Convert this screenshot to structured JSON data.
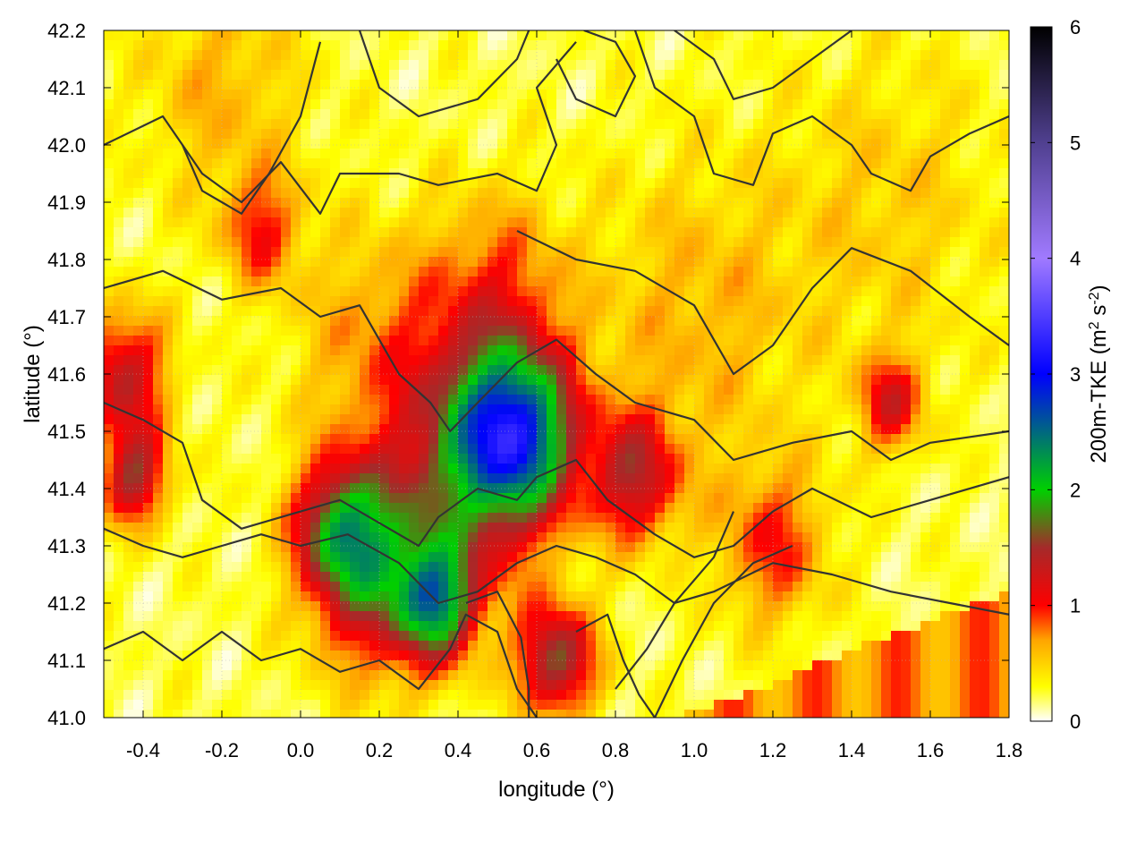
{
  "chart_data": {
    "type": "heatmap",
    "title": "",
    "xlabel": "longitude (°)",
    "ylabel": "latitude (°)",
    "xlim": [
      -0.5,
      1.8
    ],
    "ylim": [
      41.0,
      42.2
    ],
    "x_ticks": [
      -0.4,
      -0.2,
      0.0,
      0.2,
      0.4,
      0.6,
      0.8,
      1.0,
      1.2,
      1.4,
      1.6,
      1.8
    ],
    "x_tick_labels": [
      "-0.4",
      "-0.2",
      "0.0",
      "0.2",
      "0.4",
      "0.6",
      "0.8",
      "1.0",
      "1.2",
      "1.4",
      "1.6",
      "1.8"
    ],
    "y_ticks": [
      41.0,
      41.1,
      41.2,
      41.3,
      41.4,
      41.5,
      41.6,
      41.7,
      41.8,
      41.9,
      42.0,
      42.1,
      42.2
    ],
    "y_tick_labels": [
      "41.0",
      "41.1",
      "41.2",
      "41.3",
      "41.4",
      "41.5",
      "41.6",
      "41.7",
      "41.8",
      "41.9",
      "42.0",
      "42.1",
      "42.2"
    ],
    "grid": true,
    "colorbar": {
      "label_parts": [
        "200m-TKE (m",
        "2",
        " s",
        "-2",
        ")"
      ],
      "range": [
        0,
        6
      ],
      "ticks": [
        0,
        1,
        2,
        3,
        4,
        5,
        6
      ],
      "tick_labels": [
        "0",
        "1",
        "2",
        "3",
        "4",
        "5",
        "6"
      ],
      "colors": [
        {
          "value": 0.0,
          "color": "#ffffff"
        },
        {
          "value": 0.3,
          "color": "#ffff00"
        },
        {
          "value": 0.7,
          "color": "#ffa500"
        },
        {
          "value": 1.0,
          "color": "#ff0000"
        },
        {
          "value": 1.5,
          "color": "#a52a2a"
        },
        {
          "value": 2.0,
          "color": "#00d000"
        },
        {
          "value": 3.0,
          "color": "#0000ff"
        },
        {
          "value": 4.0,
          "color": "#a07aff"
        },
        {
          "value": 5.0,
          "color": "#504090"
        },
        {
          "value": 6.0,
          "color": "#000000"
        }
      ]
    },
    "field_hotspots": [
      {
        "lon": 0.55,
        "lat": 41.5,
        "value": 2.0,
        "sigma": 0.1
      },
      {
        "lon": 0.45,
        "lat": 41.45,
        "value": 1.3,
        "sigma": 0.14
      },
      {
        "lon": 0.2,
        "lat": 41.25,
        "value": 1.3,
        "sigma": 0.12
      },
      {
        "lon": 0.35,
        "lat": 41.2,
        "value": 1.6,
        "sigma": 0.07
      },
      {
        "lon": 0.1,
        "lat": 41.33,
        "value": 1.3,
        "sigma": 0.08
      },
      {
        "lon": -0.45,
        "lat": 41.6,
        "value": 1.1,
        "sigma": 0.08
      },
      {
        "lon": -0.42,
        "lat": 41.42,
        "value": 1.2,
        "sigma": 0.06
      },
      {
        "lon": 0.65,
        "lat": 41.1,
        "value": 1.4,
        "sigma": 0.07
      },
      {
        "lon": 0.85,
        "lat": 41.42,
        "value": 1.1,
        "sigma": 0.08
      },
      {
        "lon": 1.5,
        "lat": 41.55,
        "value": 0.9,
        "sigma": 0.06
      },
      {
        "lon": -0.1,
        "lat": 41.85,
        "value": 0.7,
        "sigma": 0.07
      },
      {
        "lon": 0.5,
        "lat": 41.75,
        "value": 0.6,
        "sigma": 0.12
      },
      {
        "lon": 0.2,
        "lat": 41.65,
        "value": 0.5,
        "sigma": 0.15
      },
      {
        "lon": 1.2,
        "lat": 41.3,
        "value": 0.7,
        "sigma": 0.1
      },
      {
        "lon": 1.0,
        "lat": 41.7,
        "value": 0.4,
        "sigma": 0.2
      },
      {
        "lon": -0.2,
        "lat": 42.1,
        "value": 0.4,
        "sigma": 0.15
      },
      {
        "lon": 1.5,
        "lat": 41.9,
        "value": 0.3,
        "sigma": 0.2
      }
    ],
    "sea_band": {
      "edge": [
        [
          0.95,
          41.0
        ],
        [
          1.2,
          41.06
        ],
        [
          1.45,
          41.13
        ],
        [
          1.8,
          41.22
        ]
      ],
      "value": 0.75
    },
    "contours": [
      [
        [
          -0.5,
          42.0
        ],
        [
          -0.35,
          42.05
        ],
        [
          -0.25,
          41.95
        ],
        [
          -0.15,
          41.9
        ],
        [
          -0.05,
          41.97
        ],
        [
          0.05,
          41.88
        ],
        [
          0.1,
          41.95
        ],
        [
          0.25,
          41.95
        ],
        [
          0.35,
          41.93
        ],
        [
          0.5,
          41.95
        ],
        [
          0.6,
          41.92
        ],
        [
          0.65,
          42.0
        ],
        [
          0.6,
          42.1
        ],
        [
          0.7,
          42.18
        ]
      ],
      [
        [
          -0.5,
          41.75
        ],
        [
          -0.35,
          41.78
        ],
        [
          -0.2,
          41.73
        ],
        [
          -0.05,
          41.75
        ],
        [
          0.05,
          41.7
        ],
        [
          0.15,
          41.72
        ],
        [
          0.25,
          41.6
        ],
        [
          0.33,
          41.55
        ],
        [
          0.38,
          41.5
        ],
        [
          0.45,
          41.55
        ],
        [
          0.55,
          41.62
        ],
        [
          0.65,
          41.66
        ],
        [
          0.75,
          41.6
        ],
        [
          0.85,
          41.55
        ],
        [
          1.0,
          41.52
        ],
        [
          1.1,
          41.45
        ],
        [
          1.25,
          41.48
        ],
        [
          1.4,
          41.5
        ],
        [
          1.5,
          41.45
        ],
        [
          1.6,
          41.48
        ],
        [
          1.8,
          41.5
        ]
      ],
      [
        [
          -0.5,
          41.55
        ],
        [
          -0.4,
          41.52
        ],
        [
          -0.3,
          41.48
        ],
        [
          -0.25,
          41.38
        ],
        [
          -0.15,
          41.33
        ],
        [
          0.0,
          41.36
        ],
        [
          0.1,
          41.38
        ],
        [
          0.2,
          41.34
        ],
        [
          0.3,
          41.3
        ],
        [
          0.35,
          41.35
        ],
        [
          0.45,
          41.4
        ],
        [
          0.55,
          41.38
        ],
        [
          0.6,
          41.42
        ],
        [
          0.7,
          41.45
        ],
        [
          0.78,
          41.38
        ],
        [
          0.9,
          41.32
        ],
        [
          1.0,
          41.28
        ],
        [
          1.1,
          41.3
        ],
        [
          1.2,
          41.36
        ],
        [
          1.3,
          41.4
        ],
        [
          1.45,
          41.35
        ],
        [
          1.6,
          41.38
        ],
        [
          1.8,
          41.42
        ]
      ],
      [
        [
          -0.5,
          41.33
        ],
        [
          -0.4,
          41.3
        ],
        [
          -0.3,
          41.28
        ],
        [
          -0.2,
          41.3
        ],
        [
          -0.1,
          41.32
        ],
        [
          0.0,
          41.3
        ],
        [
          0.12,
          41.32
        ],
        [
          0.25,
          41.27
        ],
        [
          0.35,
          41.2
        ],
        [
          0.45,
          41.22
        ],
        [
          0.55,
          41.27
        ],
        [
          0.65,
          41.3
        ],
        [
          0.75,
          41.28
        ],
        [
          0.85,
          41.25
        ],
        [
          0.95,
          41.2
        ],
        [
          1.05,
          41.22
        ],
        [
          1.2,
          41.27
        ],
        [
          1.35,
          41.25
        ],
        [
          1.5,
          41.22
        ],
        [
          1.65,
          41.2
        ],
        [
          1.8,
          41.18
        ]
      ],
      [
        [
          -0.5,
          41.12
        ],
        [
          -0.4,
          41.15
        ],
        [
          -0.3,
          41.1
        ],
        [
          -0.2,
          41.15
        ],
        [
          -0.1,
          41.1
        ],
        [
          0.0,
          41.12
        ],
        [
          0.1,
          41.08
        ],
        [
          0.2,
          41.1
        ],
        [
          0.3,
          41.05
        ],
        [
          0.38,
          41.12
        ],
        [
          0.42,
          41.18
        ],
        [
          0.5,
          41.15
        ],
        [
          0.55,
          41.05
        ],
        [
          0.6,
          41.0
        ]
      ],
      [
        [
          0.42,
          41.2
        ],
        [
          0.5,
          41.22
        ],
        [
          0.56,
          41.14
        ],
        [
          0.58,
          41.05
        ],
        [
          0.58,
          41.0
        ]
      ],
      [
        [
          0.7,
          41.15
        ],
        [
          0.78,
          41.18
        ],
        [
          0.82,
          41.1
        ],
        [
          0.86,
          41.04
        ],
        [
          0.9,
          41.0
        ]
      ],
      [
        [
          0.8,
          41.05
        ],
        [
          0.88,
          41.12
        ],
        [
          0.95,
          41.2
        ],
        [
          1.05,
          41.28
        ],
        [
          1.1,
          41.36
        ]
      ],
      [
        [
          0.9,
          41.0
        ],
        [
          0.97,
          41.1
        ],
        [
          1.05,
          41.2
        ],
        [
          1.15,
          41.27
        ],
        [
          1.25,
          41.3
        ]
      ],
      [
        [
          0.85,
          42.2
        ],
        [
          0.9,
          42.1
        ],
        [
          1.0,
          42.05
        ],
        [
          1.05,
          41.95
        ],
        [
          1.15,
          41.93
        ],
        [
          1.2,
          42.02
        ],
        [
          1.3,
          42.05
        ],
        [
          1.4,
          42.0
        ],
        [
          1.45,
          41.95
        ],
        [
          1.55,
          41.92
        ],
        [
          1.6,
          41.98
        ],
        [
          1.7,
          42.02
        ],
        [
          1.8,
          42.05
        ]
      ],
      [
        [
          0.95,
          42.2
        ],
        [
          1.05,
          42.15
        ],
        [
          1.1,
          42.08
        ],
        [
          1.2,
          42.1
        ],
        [
          1.3,
          42.15
        ],
        [
          1.4,
          42.2
        ]
      ],
      [
        [
          0.65,
          42.15
        ],
        [
          0.7,
          42.08
        ],
        [
          0.8,
          42.05
        ],
        [
          0.85,
          42.12
        ],
        [
          0.8,
          42.18
        ],
        [
          0.72,
          42.2
        ]
      ],
      [
        [
          -0.3,
          42.0
        ],
        [
          -0.25,
          41.92
        ],
        [
          -0.15,
          41.88
        ],
        [
          -0.08,
          41.95
        ],
        [
          0.0,
          42.05
        ],
        [
          0.05,
          42.18
        ]
      ],
      [
        [
          0.55,
          41.85
        ],
        [
          0.7,
          41.8
        ],
        [
          0.85,
          41.78
        ],
        [
          1.0,
          41.72
        ],
        [
          1.1,
          41.6
        ],
        [
          1.2,
          41.65
        ],
        [
          1.3,
          41.75
        ],
        [
          1.4,
          41.82
        ],
        [
          1.55,
          41.78
        ],
        [
          1.7,
          41.7
        ],
        [
          1.8,
          41.65
        ]
      ],
      [
        [
          0.15,
          42.2
        ],
        [
          0.2,
          42.1
        ],
        [
          0.3,
          42.05
        ],
        [
          0.45,
          42.08
        ],
        [
          0.55,
          42.15
        ],
        [
          0.58,
          42.2
        ]
      ]
    ]
  }
}
